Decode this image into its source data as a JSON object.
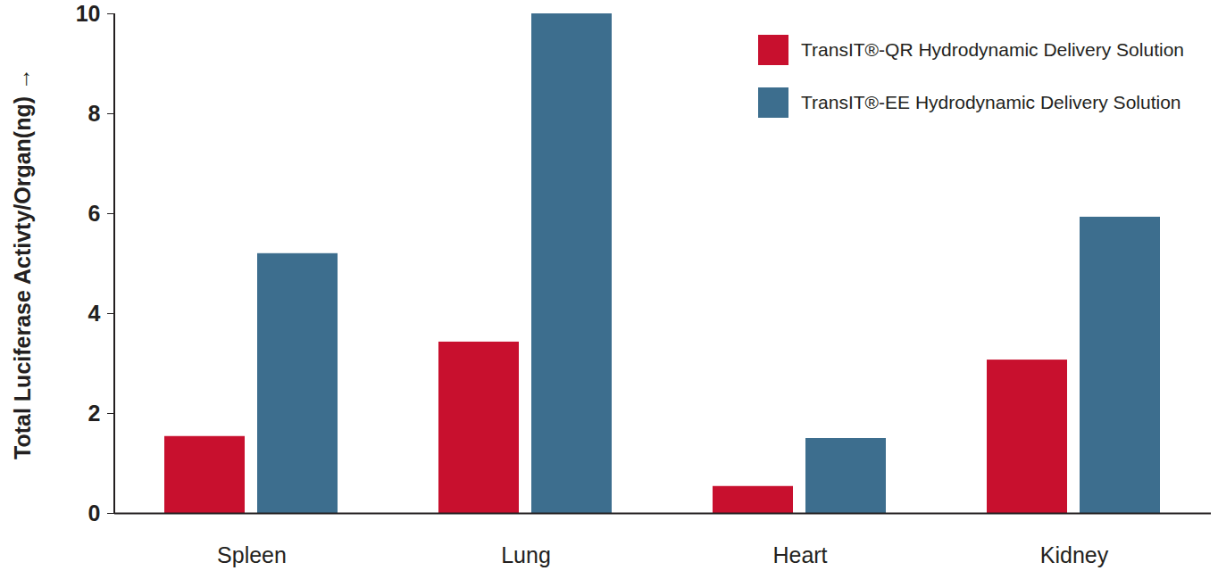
{
  "chart_data": {
    "type": "bar",
    "categories": [
      "Spleen",
      "Lung",
      "Heart",
      "Kidney"
    ],
    "series": [
      {
        "name": "TransIT®-QR Hydrodynamic Delivery Solution",
        "color": "#c8102e",
        "values": [
          1.54,
          3.43,
          0.54,
          3.07
        ]
      },
      {
        "name": "TransIT®-EE Hydrodynamic Delivery Solution",
        "color": "#3d6e8e",
        "values": [
          5.2,
          10,
          1.5,
          5.93
        ]
      }
    ],
    "ylabel": "Total Luciferase Activty/Organ(ng)",
    "ylim": [
      0,
      10
    ],
    "yticks": [
      0,
      2,
      4,
      6,
      8,
      10
    ],
    "grid": false,
    "legend": "top-right"
  }
}
